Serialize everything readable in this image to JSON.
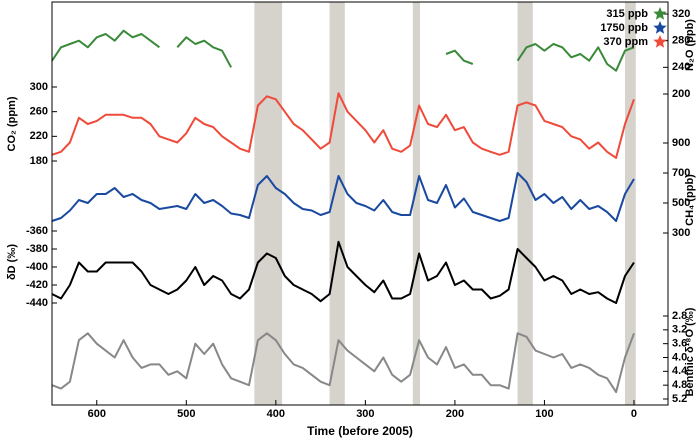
{
  "chart_data": {
    "type": "line",
    "xlabel": "Time (before 2005)",
    "xlim": [
      650,
      -38
    ],
    "xticks": [
      600,
      500,
      400,
      300,
      200,
      100,
      0
    ],
    "shaded_spans": [
      [
        424,
        393
      ],
      [
        340,
        323
      ],
      [
        247,
        239
      ],
      [
        130,
        113
      ],
      [
        10,
        -2
      ]
    ],
    "shade_color": "#d6d2cc",
    "x": [
      650,
      640,
      630,
      620,
      610,
      600,
      590,
      580,
      570,
      560,
      550,
      540,
      530,
      520,
      510,
      500,
      490,
      480,
      470,
      460,
      450,
      440,
      430,
      420,
      410,
      400,
      390,
      380,
      370,
      360,
      350,
      340,
      330,
      320,
      310,
      300,
      290,
      280,
      270,
      260,
      250,
      240,
      230,
      220,
      210,
      200,
      190,
      180,
      170,
      160,
      150,
      140,
      130,
      120,
      110,
      100,
      90,
      80,
      70,
      60,
      50,
      40,
      30,
      20,
      10,
      0
    ],
    "series": [
      {
        "name": "N₂O (ppb)",
        "color": "#3a8a3a",
        "axis": "right",
        "ylim": [
          200,
          320
        ],
        "yticks": [
          200,
          240,
          280,
          320
        ],
        "values": [
          250,
          270,
          275,
          280,
          270,
          285,
          290,
          280,
          295,
          285,
          290,
          280,
          270,
          null,
          270,
          285,
          275,
          280,
          270,
          265,
          240,
          null,
          null,
          null,
          null,
          null,
          null,
          null,
          null,
          null,
          null,
          null,
          null,
          null,
          null,
          null,
          null,
          null,
          null,
          null,
          null,
          null,
          null,
          null,
          260,
          265,
          250,
          245,
          null,
          null,
          null,
          null,
          250,
          270,
          275,
          265,
          275,
          270,
          255,
          260,
          250,
          270,
          245,
          235,
          265,
          270
        ]
      },
      {
        "name": "CO₂ (ppm)",
        "color": "#f04a3a",
        "axis": "left",
        "ylim": [
          180,
          300
        ],
        "yticks": [
          180,
          220,
          260,
          300
        ],
        "values": [
          190,
          195,
          210,
          250,
          240,
          245,
          255,
          255,
          255,
          250,
          250,
          240,
          220,
          215,
          210,
          225,
          250,
          240,
          235,
          220,
          210,
          200,
          195,
          270,
          285,
          280,
          260,
          240,
          230,
          215,
          200,
          210,
          290,
          260,
          245,
          230,
          210,
          230,
          200,
          195,
          205,
          270,
          240,
          235,
          255,
          230,
          235,
          210,
          200,
          195,
          190,
          195,
          270,
          275,
          270,
          245,
          240,
          235,
          220,
          215,
          200,
          210,
          195,
          185,
          240,
          280
        ]
      },
      {
        "name": "CH₄ (ppb)",
        "color": "#1a4aa0",
        "axis": "right",
        "ylim": [
          300,
          900
        ],
        "yticks": [
          300,
          500,
          700,
          900
        ],
        "values": [
          380,
          400,
          450,
          520,
          500,
          560,
          560,
          600,
          540,
          560,
          520,
          500,
          460,
          470,
          480,
          460,
          560,
          500,
          520,
          480,
          430,
          420,
          400,
          620,
          680,
          600,
          560,
          500,
          460,
          450,
          420,
          440,
          680,
          560,
          500,
          480,
          450,
          520,
          440,
          420,
          420,
          680,
          520,
          500,
          620,
          470,
          530,
          440,
          420,
          400,
          380,
          400,
          700,
          640,
          520,
          560,
          500,
          540,
          460,
          520,
          460,
          480,
          440,
          380,
          560,
          660
        ]
      },
      {
        "name": "δD (‰)",
        "color": "#000000",
        "axis": "left",
        "ylim": [
          -440,
          -360
        ],
        "yticks": [
          -440,
          -420,
          -400,
          -380,
          -360
        ],
        "values": [
          -430,
          -435,
          -420,
          -395,
          -405,
          -405,
          -395,
          -395,
          -395,
          -395,
          -405,
          -420,
          -425,
          -430,
          -425,
          -415,
          -400,
          -420,
          -410,
          -415,
          -430,
          -435,
          -425,
          -395,
          -385,
          -390,
          -410,
          -420,
          -425,
          -430,
          -438,
          -430,
          -372,
          -400,
          -410,
          -420,
          -428,
          -415,
          -435,
          -435,
          -430,
          -385,
          -415,
          -410,
          -395,
          -420,
          -415,
          -425,
          -425,
          -435,
          -432,
          -425,
          -380,
          -390,
          -400,
          -415,
          -410,
          -415,
          -430,
          -425,
          -430,
          -428,
          -435,
          -440,
          -410,
          -395
        ]
      },
      {
        "name": "Benthic δ¹⁸O (‰)",
        "color": "#888888",
        "axis": "right",
        "ylim": [
          5.2,
          2.8
        ],
        "yticks": [
          2.8,
          3.2,
          3.6,
          {
            "value": 4,
            "label": "4.0"
          },
          4.4,
          4.8,
          5.2
        ],
        "values": [
          4.8,
          4.9,
          4.7,
          3.5,
          3.3,
          3.6,
          3.8,
          4.0,
          3.5,
          4.0,
          4.3,
          4.2,
          4.2,
          4.5,
          4.4,
          4.6,
          3.6,
          3.9,
          3.6,
          4.2,
          4.6,
          4.7,
          4.8,
          3.5,
          3.3,
          3.5,
          3.9,
          4.2,
          4.3,
          4.5,
          4.7,
          4.8,
          3.5,
          3.8,
          4.0,
          4.2,
          4.4,
          4.0,
          4.5,
          4.7,
          4.5,
          3.5,
          4.0,
          4.2,
          3.7,
          4.3,
          4.2,
          4.5,
          4.5,
          4.8,
          4.8,
          4.9,
          3.3,
          3.4,
          3.8,
          3.9,
          4.0,
          3.9,
          4.3,
          4.2,
          4.3,
          4.5,
          4.6,
          5.0,
          4.0,
          3.3
        ]
      }
    ],
    "legend": [
      {
        "label": "315 ppb",
        "color": "#3a8a3a"
      },
      {
        "label": "1750 ppb",
        "color": "#1a4aa0"
      },
      {
        "label": "370 ppm",
        "color": "#f04a3a"
      }
    ]
  }
}
